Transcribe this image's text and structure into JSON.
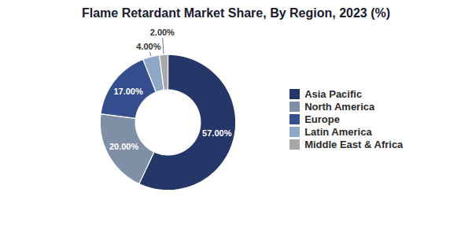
{
  "chart_data": {
    "type": "pie",
    "title": "Flame Retardant Market Share, By Region, 2023 (%)",
    "categories": [
      "Asia Pacific",
      "North America",
      "Europe",
      "Latin America",
      "Middle East & Africa"
    ],
    "values": [
      57.0,
      20.0,
      17.0,
      4.0,
      2.0
    ],
    "value_labels": [
      "57.00%",
      "20.00%",
      "17.00%",
      "4.00%",
      "2.00%"
    ],
    "colors": [
      "#253668",
      "#7f8fa6",
      "#354f8e",
      "#8fa8c8",
      "#a8a8a8"
    ],
    "data_labels": true,
    "legend": "right"
  }
}
